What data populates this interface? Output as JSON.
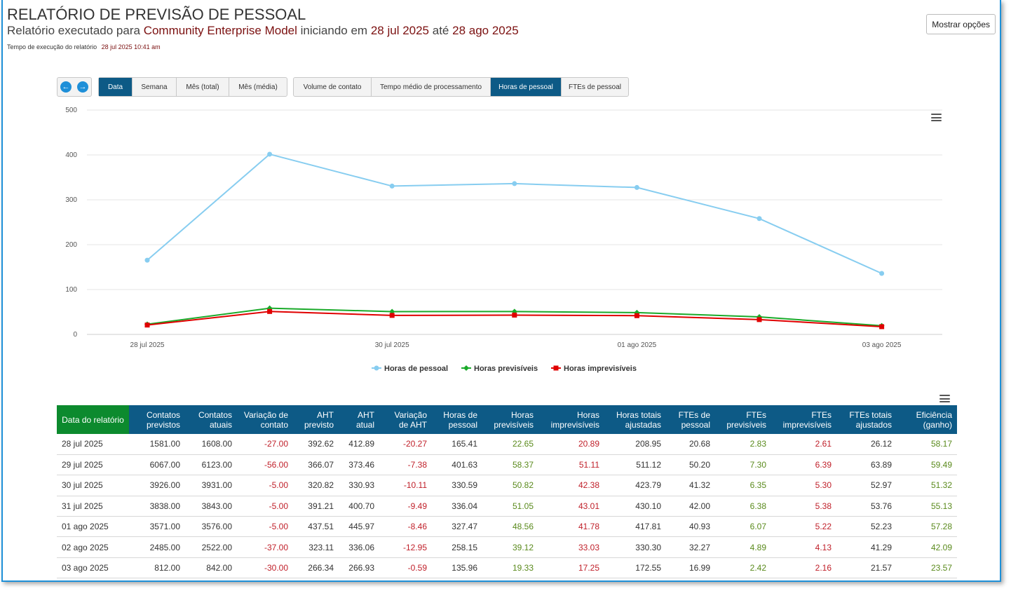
{
  "header": {
    "title": "RELATÓRIO DE PREVISÃO DE PESSOAL",
    "subtitle_prefix": "Relatório executado para",
    "model_name": "Community Enterprise Model",
    "subtitle_mid": "iniciando em",
    "start_date": "28 jul 2025",
    "subtitle_until": "até",
    "end_date": "28 ago 2025",
    "exec_label": "Tempo de execução do relatório",
    "exec_time": "28 jul 2025 10:41 am",
    "options_button": "Mostrar opções"
  },
  "nav": {
    "prev_icon": "arrow-left-icon",
    "next_icon": "arrow-right-icon"
  },
  "period_tabs": [
    {
      "label": "Data",
      "active": true
    },
    {
      "label": "Semana",
      "active": false
    },
    {
      "label": "Mês (total)",
      "active": false
    },
    {
      "label": "Mês (média)",
      "active": false
    }
  ],
  "metric_tabs": [
    {
      "label": "Volume de contato",
      "active": false
    },
    {
      "label": "Tempo médio de processamento",
      "active": false
    },
    {
      "label": "Horas de pessoal",
      "active": true
    },
    {
      "label": "FTEs de pessoal",
      "active": false
    }
  ],
  "chart_data": {
    "type": "line",
    "categories": [
      "28 jul 2025",
      "29 jul 2025",
      "30 jul 2025",
      "31 jul 2025",
      "01 ago 2025",
      "02 ago 2025",
      "03 ago 2025"
    ],
    "x_tick_labels": [
      "28 jul 2025",
      "30 jul 2025",
      "01 ago 2025",
      "03 ago 2025"
    ],
    "ylim": [
      0,
      500
    ],
    "y_ticks": [
      0,
      100,
      200,
      300,
      400,
      500
    ],
    "grid": true,
    "legend_position": "bottom-center",
    "series": [
      {
        "name": "Horas de pessoal",
        "color": "#87cdf0",
        "marker": "circle",
        "values": [
          165.41,
          401.63,
          330.59,
          336.04,
          327.47,
          258.15,
          135.96
        ]
      },
      {
        "name": "Horas previsíveis",
        "color": "#1aaa2a",
        "marker": "diamond",
        "values": [
          22.65,
          58.37,
          50.82,
          51.05,
          48.56,
          39.12,
          19.33
        ]
      },
      {
        "name": "Horas imprevisíveis",
        "color": "#e00000",
        "marker": "square",
        "values": [
          20.89,
          51.11,
          42.38,
          43.01,
          41.78,
          33.03,
          17.25
        ]
      }
    ]
  },
  "table": {
    "columns": [
      "Data do relatório",
      "Contatos\nprevistos",
      "Contatos\natuais",
      "Variação de\ncontato",
      "AHT\nprevisto",
      "AHT\natual",
      "Variação\nde AHT",
      "Horas de\npessoal",
      "Horas\nprevisíveis",
      "Horas\nimprevisíveis",
      "Horas totais\najustadas",
      "FTEs de\npessoal",
      "FTEs\nprevisíveis",
      "FTEs\nimprevisíveis",
      "FTEs totais\najustados",
      "Eficiência\n(ganho)"
    ],
    "col_styles": [
      "date",
      "",
      "",
      "neg",
      "",
      "",
      "neg",
      "",
      "pos",
      "neg",
      "",
      "",
      "pos",
      "neg",
      "",
      "pos"
    ],
    "rows": [
      [
        "28 jul 2025",
        "1581.00",
        "1608.00",
        "-27.00",
        "392.62",
        "412.89",
        "-20.27",
        "165.41",
        "22.65",
        "20.89",
        "208.95",
        "20.68",
        "2.83",
        "2.61",
        "26.12",
        "58.17"
      ],
      [
        "29 jul 2025",
        "6067.00",
        "6123.00",
        "-56.00",
        "366.07",
        "373.46",
        "-7.38",
        "401.63",
        "58.37",
        "51.11",
        "511.12",
        "50.20",
        "7.30",
        "6.39",
        "63.89",
        "59.49"
      ],
      [
        "30 jul 2025",
        "3926.00",
        "3931.00",
        "-5.00",
        "320.82",
        "330.93",
        "-10.11",
        "330.59",
        "50.82",
        "42.38",
        "423.79",
        "41.32",
        "6.35",
        "5.30",
        "52.97",
        "51.32"
      ],
      [
        "31 jul 2025",
        "3838.00",
        "3843.00",
        "-5.00",
        "391.21",
        "400.70",
        "-9.49",
        "336.04",
        "51.05",
        "43.01",
        "430.10",
        "42.00",
        "6.38",
        "5.38",
        "53.76",
        "55.13"
      ],
      [
        "01 ago 2025",
        "3571.00",
        "3576.00",
        "-5.00",
        "437.51",
        "445.97",
        "-8.46",
        "327.47",
        "48.56",
        "41.78",
        "417.81",
        "40.93",
        "6.07",
        "5.22",
        "52.23",
        "57.28"
      ],
      [
        "02 ago 2025",
        "2485.00",
        "2522.00",
        "-37.00",
        "323.11",
        "336.06",
        "-12.95",
        "258.15",
        "39.12",
        "33.03",
        "330.30",
        "32.27",
        "4.89",
        "4.13",
        "41.29",
        "42.09"
      ],
      [
        "03 ago 2025",
        "812.00",
        "842.00",
        "-30.00",
        "266.34",
        "266.93",
        "-0.59",
        "135.96",
        "19.33",
        "17.25",
        "172.55",
        "16.99",
        "2.42",
        "2.16",
        "21.57",
        "23.57"
      ]
    ]
  }
}
